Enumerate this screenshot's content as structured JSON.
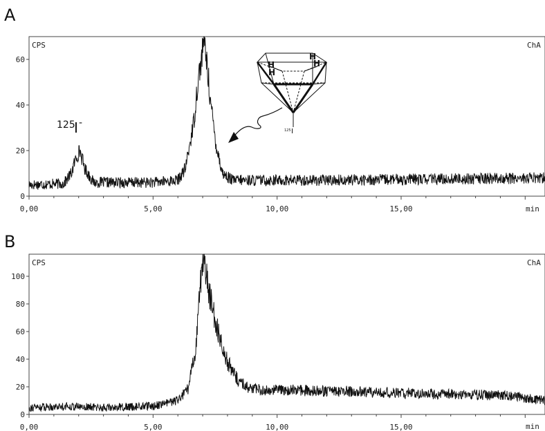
{
  "chart_data": [
    {
      "type": "line",
      "panel_label": "A",
      "corner_left_label": "CPS",
      "corner_right_label": "ChA",
      "xlabel": "min",
      "xlim": [
        0,
        20.8
      ],
      "ylim": [
        0,
        70
      ],
      "x_tick_labels": [
        "0,00",
        "5,00",
        "10,00",
        "15,00"
      ],
      "x_tick_values": [
        0,
        5,
        10,
        15
      ],
      "y_tick_labels": [
        "0",
        "20",
        "40",
        "60"
      ],
      "y_tick_values": [
        0,
        20,
        40,
        60
      ],
      "peak_annotation": {
        "prefix": "125",
        "text": "I",
        "suffix": "-",
        "at_x": 2.0
      },
      "inset_structure": {
        "h_labels": [
          "H",
          "H",
          "H",
          "H"
        ],
        "iodine_label_prefix": "125",
        "iodine_label": "I"
      },
      "series": [
        {
          "key": [
            [
              0,
              5
            ],
            [
              1.4,
              5.5
            ],
            [
              1.7,
              10
            ],
            [
              1.9,
              17
            ],
            [
              2.05,
              20
            ],
            [
              2.25,
              12
            ],
            [
              2.6,
              6
            ],
            [
              5.0,
              6
            ],
            [
              6.0,
              7
            ],
            [
              6.3,
              12
            ],
            [
              6.5,
              24
            ],
            [
              6.65,
              33
            ],
            [
              6.8,
              50
            ],
            [
              6.95,
              60
            ],
            [
              7.05,
              70
            ],
            [
              7.2,
              55
            ],
            [
              7.35,
              38
            ],
            [
              7.55,
              22
            ],
            [
              7.8,
              10
            ],
            [
              8.2,
              7
            ],
            [
              12,
              7
            ],
            [
              20.8,
              8
            ]
          ],
          "noise_amplitude": 3.2,
          "points_count": 1400
        }
      ]
    },
    {
      "type": "line",
      "panel_label": "B",
      "corner_left_label": "CPS",
      "corner_right_label": "ChA",
      "xlabel": "min",
      "xlim": [
        0,
        20.8
      ],
      "ylim": [
        0,
        116
      ],
      "x_tick_labels": [
        "0,00",
        "5,00",
        "10,00",
        "15,00"
      ],
      "x_tick_values": [
        0,
        5,
        10,
        15
      ],
      "y_tick_labels": [
        "0",
        "20",
        "40",
        "60",
        "80",
        "100"
      ],
      "y_tick_values": [
        0,
        20,
        40,
        60,
        80,
        100
      ],
      "series": [
        {
          "key": [
            [
              0,
              5
            ],
            [
              1.5,
              6
            ],
            [
              3,
              5
            ],
            [
              5,
              6
            ],
            [
              6.0,
              10
            ],
            [
              6.4,
              18
            ],
            [
              6.7,
              45
            ],
            [
              6.85,
              80
            ],
            [
              6.95,
              105
            ],
            [
              7.05,
              115
            ],
            [
              7.2,
              95
            ],
            [
              7.4,
              75
            ],
            [
              7.7,
              55
            ],
            [
              8.0,
              38
            ],
            [
              8.4,
              25
            ],
            [
              9.0,
              18
            ],
            [
              12,
              17
            ],
            [
              16,
              15
            ],
            [
              19,
              14
            ],
            [
              20.8,
              10
            ]
          ],
          "noise_amplitude": 4.0,
          "points_count": 1400
        }
      ]
    }
  ]
}
